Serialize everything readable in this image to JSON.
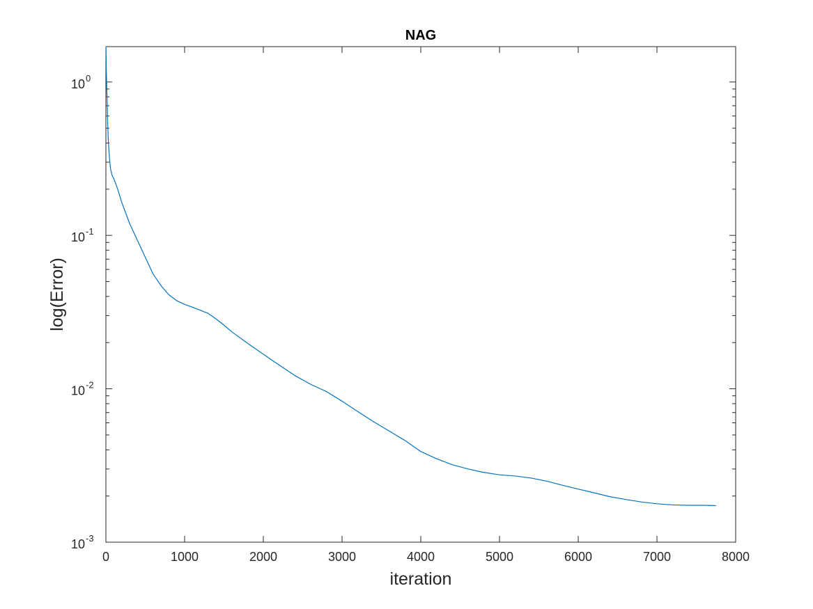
{
  "chart_data": {
    "type": "line",
    "title": "NAG",
    "xlabel": "iteration",
    "ylabel": "log(Error)",
    "xlim": [
      0,
      8000
    ],
    "ylim": [
      0.001,
      1.7
    ],
    "yscale": "log",
    "grid": false,
    "box": true,
    "line_color": "#0072BD",
    "x_ticks": [
      {
        "value": 0,
        "label": "0"
      },
      {
        "value": 1000,
        "label": "1000"
      },
      {
        "value": 2000,
        "label": "2000"
      },
      {
        "value": 3000,
        "label": "3000"
      },
      {
        "value": 4000,
        "label": "4000"
      },
      {
        "value": 5000,
        "label": "5000"
      },
      {
        "value": 6000,
        "label": "6000"
      },
      {
        "value": 7000,
        "label": "7000"
      },
      {
        "value": 8000,
        "label": "8000"
      }
    ],
    "y_ticks": [
      {
        "value": 0.001,
        "base": "10",
        "exp": "-3"
      },
      {
        "value": 0.01,
        "base": "10",
        "exp": "-2"
      },
      {
        "value": 0.1,
        "base": "10",
        "exp": "-1"
      },
      {
        "value": 1,
        "base": "10",
        "exp": "0"
      }
    ],
    "series": [
      {
        "x": [
          1,
          5,
          10,
          15,
          20,
          25,
          30,
          40,
          50,
          60,
          80,
          100,
          150,
          200,
          300,
          400,
          500,
          600,
          700,
          800,
          900,
          1000,
          1100,
          1200,
          1300,
          1400,
          1500,
          1600,
          1800,
          2000,
          2200,
          2400,
          2600,
          2800,
          3000,
          3200,
          3400,
          3600,
          3800,
          4000,
          4200,
          4400,
          4600,
          4800,
          5000,
          5200,
          5400,
          5600,
          5800,
          6000,
          6200,
          6400,
          6600,
          6800,
          7000,
          7200,
          7400,
          7600,
          7750
        ],
        "y": [
          1.7,
          1.2,
          0.95,
          0.78,
          0.62,
          0.5,
          0.42,
          0.35,
          0.3,
          0.27,
          0.245,
          0.235,
          0.2,
          0.165,
          0.12,
          0.093,
          0.072,
          0.056,
          0.047,
          0.041,
          0.0375,
          0.0355,
          0.034,
          0.0325,
          0.031,
          0.0285,
          0.026,
          0.0235,
          0.0198,
          0.0168,
          0.0143,
          0.0122,
          0.0107,
          0.0096,
          0.0083,
          0.0071,
          0.0061,
          0.0053,
          0.0046,
          0.0039,
          0.0035,
          0.0032,
          0.003,
          0.00285,
          0.00275,
          0.0027,
          0.00262,
          0.0025,
          0.00235,
          0.00222,
          0.0021,
          0.00198,
          0.0019,
          0.00183,
          0.00178,
          0.00175,
          0.00174,
          0.00174,
          0.00173
        ]
      }
    ]
  }
}
